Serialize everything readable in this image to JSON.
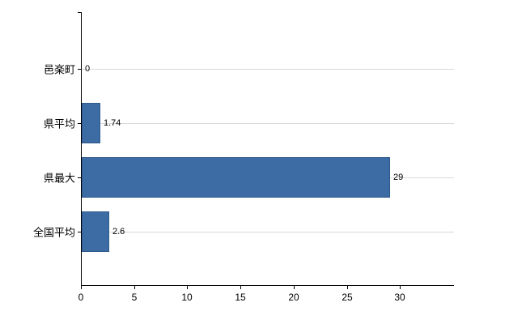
{
  "chart_data": {
    "type": "bar",
    "orientation": "horizontal",
    "title": "",
    "xlabel": "",
    "ylabel": "",
    "categories": [
      "邑楽町",
      "県平均",
      "県最大",
      "全国平均"
    ],
    "values": [
      0,
      1.74,
      29,
      2.6
    ],
    "value_labels": [
      "0",
      "1.74",
      "29",
      "2.6"
    ],
    "xlim": [
      0,
      35
    ],
    "x_ticks": [
      0,
      5,
      10,
      15,
      20,
      25,
      30
    ],
    "grid": "horizontal-category-lines",
    "legend": "none",
    "bar_color": "#3d6ca5",
    "bar_border_color": "#2f5a8c",
    "gridline_color": "#d9d9d9",
    "axis_color": "#000000",
    "background_color": "#ffffff"
  }
}
